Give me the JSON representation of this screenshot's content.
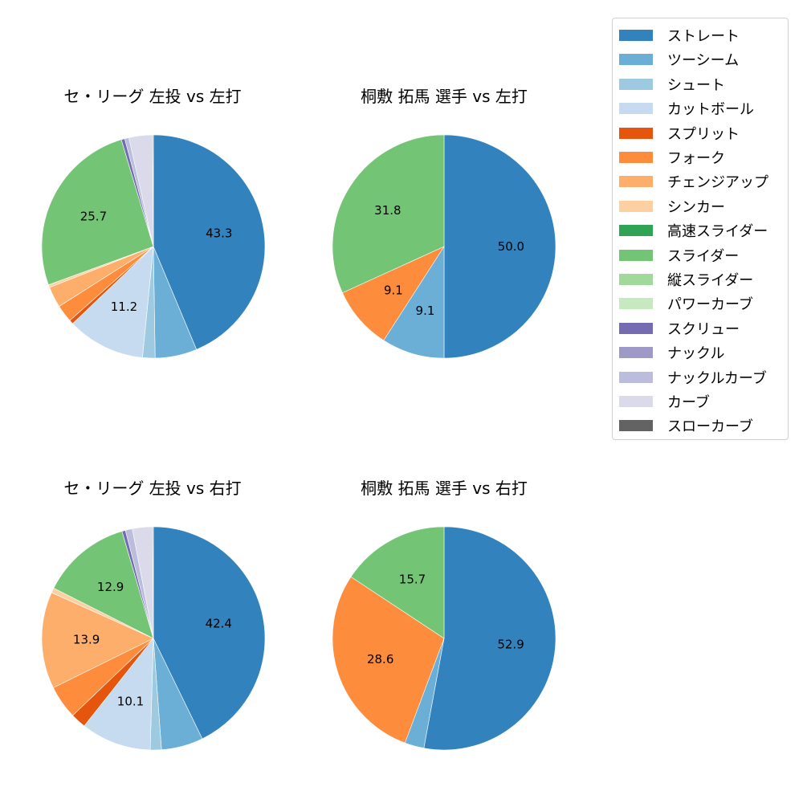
{
  "chart_data": [
    {
      "type": "pie",
      "title": "セ・リーグ 左投 vs 左打",
      "categories": [
        "ストレート",
        "ツーシーム",
        "シュート",
        "カットボール",
        "スプリット",
        "フォーク",
        "チェンジアップ",
        "シンカー",
        "高速スライダー",
        "スライダー",
        "縦スライダー",
        "パワーカーブ",
        "スクリュー",
        "ナックル",
        "ナックルカーブ",
        "カーブ",
        "スローカーブ"
      ],
      "values": [
        43.3,
        6.0,
        1.8,
        11.2,
        0.6,
        2.5,
        3.0,
        0.4,
        0,
        25.7,
        0,
        0,
        0.5,
        0,
        0.6,
        3.4,
        0.1
      ],
      "labels_shown": {
        "ストレート": "43.3",
        "カットボール": "11.2",
        "スライダー": "25.7"
      }
    },
    {
      "type": "pie",
      "title": "桐敷 拓馬 選手 vs 左打",
      "categories": [
        "ストレート",
        "ツーシーム",
        "フォーク",
        "スライダー"
      ],
      "values": [
        50.0,
        9.1,
        9.1,
        31.8
      ],
      "labels_shown": {
        "ストレート": "50.0",
        "ツーシーム": "9.1",
        "フォーク": "9.1",
        "スライダー": "31.8"
      }
    },
    {
      "type": "pie",
      "title": "セ・リーグ 左投 vs 右打",
      "categories": [
        "ストレート",
        "ツーシーム",
        "シュート",
        "カットボール",
        "スプリット",
        "フォーク",
        "チェンジアップ",
        "シンカー",
        "高速スライダー",
        "スライダー",
        "縦スライダー",
        "パワーカーブ",
        "スクリュー",
        "ナックル",
        "ナックルカーブ",
        "カーブ",
        "スローカーブ"
      ],
      "values": [
        42.4,
        6.0,
        1.6,
        10.1,
        2.2,
        4.8,
        13.9,
        0.7,
        0,
        12.9,
        0,
        0,
        0.5,
        0,
        1.0,
        2.9,
        0.1
      ],
      "labels_shown": {
        "ストレート": "42.4",
        "カットボール": "10.1",
        "チェンジアップ": "13.9",
        "スライダー": "12.9"
      }
    },
    {
      "type": "pie",
      "title": "桐敷 拓馬 選手 vs 右打",
      "categories": [
        "ストレート",
        "ツーシーム",
        "フォーク",
        "スライダー"
      ],
      "values": [
        52.9,
        2.8,
        28.6,
        15.7
      ],
      "labels_shown": {
        "ストレート": "52.9",
        "フォーク": "28.6",
        "スライダー": "15.7"
      }
    }
  ],
  "legend": {
    "position": "right",
    "items": [
      {
        "label": "ストレート",
        "color": "#3182bd"
      },
      {
        "label": "ツーシーム",
        "color": "#6baed6"
      },
      {
        "label": "シュート",
        "color": "#9ecae1"
      },
      {
        "label": "カットボール",
        "color": "#c6dbef"
      },
      {
        "label": "スプリット",
        "color": "#e6550d"
      },
      {
        "label": "フォーク",
        "color": "#fd8d3c"
      },
      {
        "label": "チェンジアップ",
        "color": "#fdae6b"
      },
      {
        "label": "シンカー",
        "color": "#fdd0a2"
      },
      {
        "label": "高速スライダー",
        "color": "#31a354"
      },
      {
        "label": "スライダー",
        "color": "#74c476"
      },
      {
        "label": "縦スライダー",
        "color": "#a1d99b"
      },
      {
        "label": "パワーカーブ",
        "color": "#c7e9c0"
      },
      {
        "label": "スクリュー",
        "color": "#756bb1"
      },
      {
        "label": "ナックル",
        "color": "#9e9ac8"
      },
      {
        "label": "ナックルカーブ",
        "color": "#bcbddc"
      },
      {
        "label": "カーブ",
        "color": "#dadaeb"
      },
      {
        "label": "スローカーブ",
        "color": "#636363"
      }
    ]
  },
  "panels": [
    {
      "title": "セ・リーグ 左投 vs 左打"
    },
    {
      "title": "桐敷 拓馬 選手 vs 左打"
    },
    {
      "title": "セ・リーグ 左投 vs 右打"
    },
    {
      "title": "桐敷 拓馬 選手 vs 右打"
    }
  ]
}
